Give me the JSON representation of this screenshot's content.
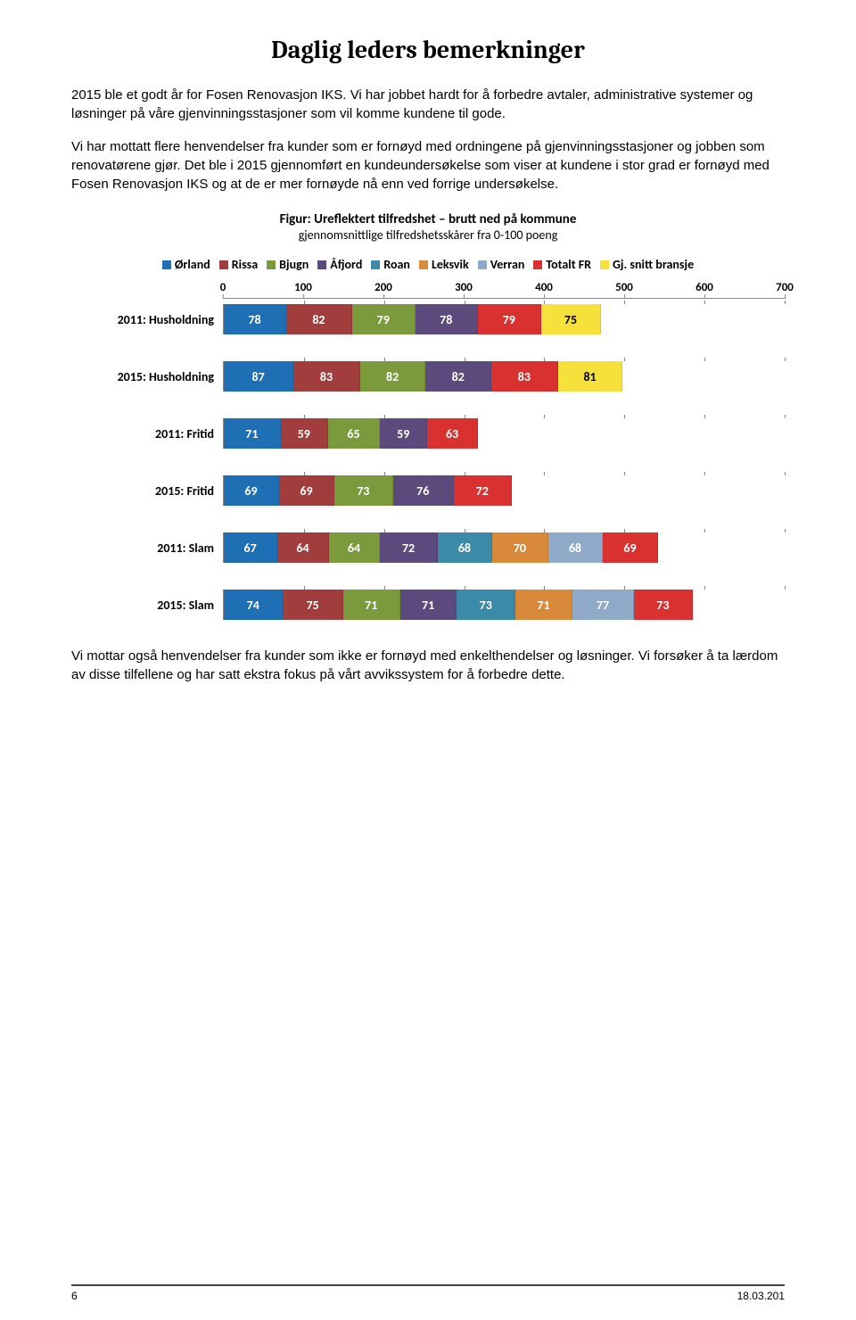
{
  "title": "Daglig leders bemerkninger",
  "para1": "2015 ble et godt år for Fosen Renovasjon IKS. Vi har jobbet hardt for å forbedre avtaler, administrative systemer og løsninger på våre gjenvinningsstasjoner som vil komme kundene til gode.",
  "para2": "Vi har mottatt flere henvendelser fra kunder som er fornøyd med ordningene på gjenvinningsstasjoner og jobben som renovatørene gjør. Det ble i 2015 gjennomført en kundeundersøkelse som viser at kundene i stor grad er fornøyd med Fosen Renovasjon IKS og at de er mer fornøyde nå enn ved forrige undersøkelse.",
  "chart": {
    "caption_bold": "Figur: Ureflektert tilfredshet – brutt ned på kommune",
    "caption_sub": "gjennomsnittlige tilfredshetsskårer fra 0-100 poeng",
    "x_max": 700,
    "x_ticks": [
      0,
      100,
      200,
      300,
      400,
      500,
      600,
      700
    ],
    "legend": [
      {
        "label": "Ørland",
        "color": "#1f6fb4"
      },
      {
        "label": "Rissa",
        "color": "#a23d3d"
      },
      {
        "label": "Bjugn",
        "color": "#7a9a3b"
      },
      {
        "label": "Åfjord",
        "color": "#5c4a7d"
      },
      {
        "label": "Roan",
        "color": "#3b8aa8"
      },
      {
        "label": "Leksvik",
        "color": "#d88a3a"
      },
      {
        "label": "Verran",
        "color": "#8fa9c9"
      },
      {
        "label": "Totalt FR",
        "color": "#d93030"
      },
      {
        "label": "Gj. snitt bransje",
        "color": "#f6e03c"
      }
    ],
    "rows": [
      {
        "label": "2011: Husholdning",
        "segments": [
          {
            "value": 78,
            "color": "#1f6fb4"
          },
          {
            "value": 82,
            "color": "#a23d3d"
          },
          {
            "value": 79,
            "color": "#7a9a3b"
          },
          {
            "value": 78,
            "color": "#5c4a7d"
          },
          {
            "value": 79,
            "color": "#d93030"
          },
          {
            "value": 75,
            "color": "#f6e03c",
            "text_color": "#000000"
          }
        ]
      },
      {
        "label": "2015: Husholdning",
        "segments": [
          {
            "value": 87,
            "color": "#1f6fb4"
          },
          {
            "value": 83,
            "color": "#a23d3d"
          },
          {
            "value": 82,
            "color": "#7a9a3b"
          },
          {
            "value": 82,
            "color": "#5c4a7d"
          },
          {
            "value": 83,
            "color": "#d93030"
          },
          {
            "value": 81,
            "color": "#f6e03c",
            "text_color": "#000000"
          }
        ]
      },
      {
        "label": "2011: Fritid",
        "segments": [
          {
            "value": 71,
            "color": "#1f6fb4"
          },
          {
            "value": 59,
            "color": "#a23d3d"
          },
          {
            "value": 65,
            "color": "#7a9a3b"
          },
          {
            "value": 59,
            "color": "#5c4a7d"
          },
          {
            "value": 63,
            "color": "#d93030"
          }
        ]
      },
      {
        "label": "2015: Fritid",
        "segments": [
          {
            "value": 69,
            "color": "#1f6fb4"
          },
          {
            "value": 69,
            "color": "#a23d3d"
          },
          {
            "value": 73,
            "color": "#7a9a3b"
          },
          {
            "value": 76,
            "color": "#5c4a7d"
          },
          {
            "value": 72,
            "color": "#d93030"
          }
        ]
      },
      {
        "label": "2011: Slam",
        "segments": [
          {
            "value": 67,
            "color": "#1f6fb4"
          },
          {
            "value": 64,
            "color": "#a23d3d"
          },
          {
            "value": 64,
            "color": "#7a9a3b"
          },
          {
            "value": 72,
            "color": "#5c4a7d"
          },
          {
            "value": 68,
            "color": "#3b8aa8"
          },
          {
            "value": 70,
            "color": "#d88a3a"
          },
          {
            "value": 68,
            "color": "#8fa9c9"
          },
          {
            "value": 69,
            "color": "#d93030"
          }
        ]
      },
      {
        "label": "2015: Slam",
        "segments": [
          {
            "value": 74,
            "color": "#1f6fb4"
          },
          {
            "value": 75,
            "color": "#a23d3d"
          },
          {
            "value": 71,
            "color": "#7a9a3b"
          },
          {
            "value": 71,
            "color": "#5c4a7d"
          },
          {
            "value": 73,
            "color": "#3b8aa8"
          },
          {
            "value": 71,
            "color": "#d88a3a"
          },
          {
            "value": 77,
            "color": "#8fa9c9"
          },
          {
            "value": 73,
            "color": "#d93030"
          }
        ]
      }
    ]
  },
  "para3": "Vi mottar også henvendelser fra kunder som ikke er fornøyd med enkelthendelser og løsninger. Vi forsøker å ta lærdom av disse tilfellene og har satt ekstra fokus på vårt avvikssystem for å forbedre dette.",
  "footer": {
    "page": "6",
    "date": "18.03.201"
  }
}
